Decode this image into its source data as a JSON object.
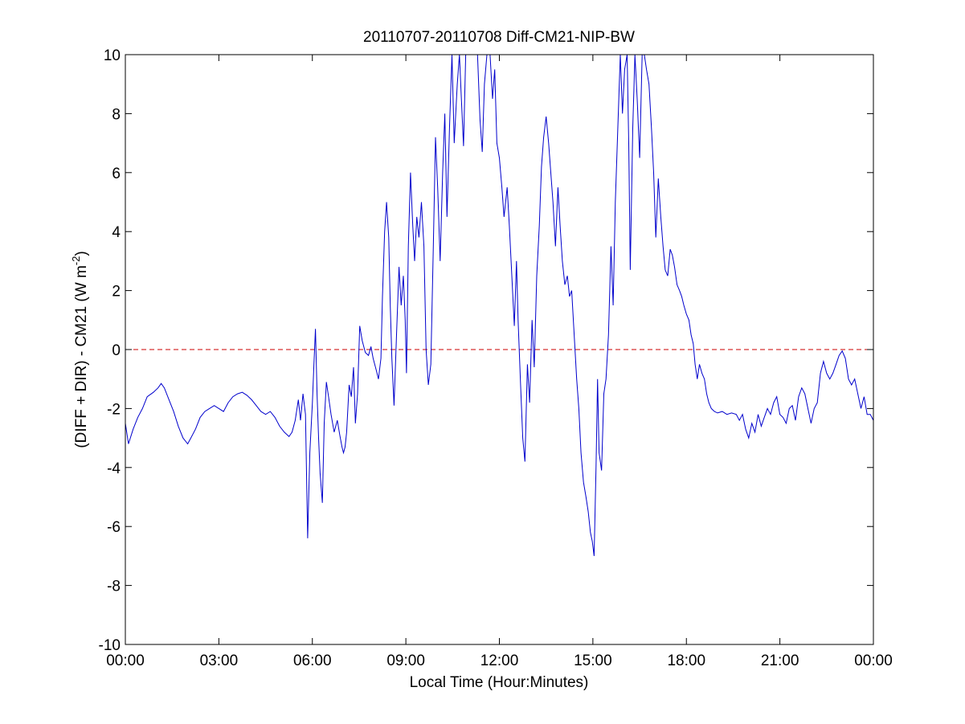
{
  "chart_data": {
    "type": "line",
    "title": "20110707-20110708 Diff-CM21-NIP-BW",
    "xlabel": "Local Time (Hour:Minutes)",
    "ylabel_main": "(DIFF + DIR) - CM21 (W m",
    "ylabel_sup": "-2",
    "ylabel_close": ")",
    "xlim": [
      0,
      24
    ],
    "ylim": [
      -10,
      10
    ],
    "x_ticks": [
      0,
      3,
      6,
      9,
      12,
      15,
      18,
      21,
      24
    ],
    "x_tick_labels": [
      "00:00",
      "03:00",
      "06:00",
      "09:00",
      "12:00",
      "15:00",
      "18:00",
      "21:00",
      "00:00"
    ],
    "y_ticks": [
      -10,
      -8,
      -6,
      -4,
      -2,
      0,
      2,
      4,
      6,
      8,
      10
    ],
    "y_tick_labels": [
      "-10",
      "-8",
      "-6",
      "-4",
      "-2",
      "0",
      "2",
      "4",
      "6",
      "8",
      "10"
    ],
    "grid": false,
    "reference_line": {
      "y": 0,
      "color": "#cc0000",
      "style": "dashed"
    },
    "series": [
      {
        "color": "#0000cc",
        "points": [
          [
            0.0,
            -2.5
          ],
          [
            0.1,
            -3.2
          ],
          [
            0.25,
            -2.7
          ],
          [
            0.4,
            -2.3
          ],
          [
            0.55,
            -2.0
          ],
          [
            0.7,
            -1.6
          ],
          [
            0.9,
            -1.45
          ],
          [
            1.05,
            -1.3
          ],
          [
            1.15,
            -1.15
          ],
          [
            1.25,
            -1.3
          ],
          [
            1.4,
            -1.7
          ],
          [
            1.55,
            -2.1
          ],
          [
            1.7,
            -2.6
          ],
          [
            1.85,
            -3.0
          ],
          [
            2.0,
            -3.2
          ],
          [
            2.1,
            -3.0
          ],
          [
            2.25,
            -2.7
          ],
          [
            2.4,
            -2.3
          ],
          [
            2.55,
            -2.1
          ],
          [
            2.7,
            -2.0
          ],
          [
            2.85,
            -1.9
          ],
          [
            3.0,
            -2.0
          ],
          [
            3.15,
            -2.1
          ],
          [
            3.3,
            -1.8
          ],
          [
            3.45,
            -1.6
          ],
          [
            3.6,
            -1.5
          ],
          [
            3.75,
            -1.45
          ],
          [
            3.9,
            -1.55
          ],
          [
            4.05,
            -1.7
          ],
          [
            4.2,
            -1.9
          ],
          [
            4.35,
            -2.1
          ],
          [
            4.5,
            -2.2
          ],
          [
            4.65,
            -2.1
          ],
          [
            4.8,
            -2.3
          ],
          [
            4.95,
            -2.6
          ],
          [
            5.1,
            -2.8
          ],
          [
            5.25,
            -2.95
          ],
          [
            5.35,
            -2.8
          ],
          [
            5.45,
            -2.4
          ],
          [
            5.55,
            -1.7
          ],
          [
            5.62,
            -2.4
          ],
          [
            5.7,
            -1.5
          ],
          [
            5.78,
            -2.2
          ],
          [
            5.85,
            -6.4
          ],
          [
            5.92,
            -3.5
          ],
          [
            6.0,
            -1.8
          ],
          [
            6.05,
            -0.5
          ],
          [
            6.1,
            0.7
          ],
          [
            6.15,
            -1.5
          ],
          [
            6.2,
            -3.0
          ],
          [
            6.25,
            -4.2
          ],
          [
            6.32,
            -5.2
          ],
          [
            6.38,
            -2.5
          ],
          [
            6.45,
            -1.1
          ],
          [
            6.52,
            -1.6
          ],
          [
            6.6,
            -2.2
          ],
          [
            6.7,
            -2.8
          ],
          [
            6.8,
            -2.4
          ],
          [
            6.88,
            -2.9
          ],
          [
            6.95,
            -3.3
          ],
          [
            7.0,
            -3.5
          ],
          [
            7.05,
            -3.3
          ],
          [
            7.1,
            -2.8
          ],
          [
            7.18,
            -1.2
          ],
          [
            7.25,
            -1.6
          ],
          [
            7.32,
            -0.6
          ],
          [
            7.38,
            -2.5
          ],
          [
            7.45,
            -1.5
          ],
          [
            7.52,
            0.8
          ],
          [
            7.6,
            0.3
          ],
          [
            7.7,
            -0.1
          ],
          [
            7.8,
            -0.2
          ],
          [
            7.88,
            0.1
          ],
          [
            7.95,
            -0.3
          ],
          [
            8.05,
            -0.7
          ],
          [
            8.12,
            -1.0
          ],
          [
            8.2,
            -0.3
          ],
          [
            8.25,
            1.8
          ],
          [
            8.32,
            4.0
          ],
          [
            8.38,
            5.0
          ],
          [
            8.45,
            3.8
          ],
          [
            8.5,
            1.5
          ],
          [
            8.55,
            -0.3
          ],
          [
            8.62,
            -1.9
          ],
          [
            8.7,
            0.5
          ],
          [
            8.78,
            2.8
          ],
          [
            8.85,
            1.5
          ],
          [
            8.92,
            2.5
          ],
          [
            8.98,
            1.0
          ],
          [
            9.02,
            -0.8
          ],
          [
            9.08,
            3.5
          ],
          [
            9.15,
            6.0
          ],
          [
            9.22,
            4.2
          ],
          [
            9.28,
            3.0
          ],
          [
            9.35,
            4.5
          ],
          [
            9.42,
            3.8
          ],
          [
            9.5,
            5.0
          ],
          [
            9.58,
            3.5
          ],
          [
            9.65,
            0.0
          ],
          [
            9.72,
            -1.2
          ],
          [
            9.8,
            -0.5
          ],
          [
            9.88,
            3.5
          ],
          [
            9.95,
            7.2
          ],
          [
            10.02,
            5.5
          ],
          [
            10.1,
            3.0
          ],
          [
            10.18,
            6.0
          ],
          [
            10.25,
            8.0
          ],
          [
            10.32,
            4.5
          ],
          [
            10.4,
            7.5
          ],
          [
            10.48,
            10.0
          ],
          [
            10.55,
            7.0
          ],
          [
            10.65,
            9.0
          ],
          [
            10.72,
            10.0
          ],
          [
            10.78,
            8.5
          ],
          [
            10.85,
            6.9
          ],
          [
            10.92,
            10.0
          ],
          [
            11.0,
            10.0
          ],
          [
            11.3,
            10.0
          ],
          [
            11.38,
            7.8
          ],
          [
            11.45,
            6.7
          ],
          [
            11.52,
            9.0
          ],
          [
            11.6,
            10.0
          ],
          [
            11.7,
            10.0
          ],
          [
            11.78,
            8.5
          ],
          [
            11.85,
            9.5
          ],
          [
            11.92,
            7.0
          ],
          [
            12.0,
            6.5
          ],
          [
            12.08,
            5.5
          ],
          [
            12.15,
            4.5
          ],
          [
            12.25,
            5.5
          ],
          [
            12.32,
            4.2
          ],
          [
            12.4,
            2.5
          ],
          [
            12.48,
            0.8
          ],
          [
            12.55,
            3.0
          ],
          [
            12.6,
            1.0
          ],
          [
            12.68,
            -1.2
          ],
          [
            12.75,
            -3.0
          ],
          [
            12.82,
            -3.8
          ],
          [
            12.9,
            -0.5
          ],
          [
            12.97,
            -1.8
          ],
          [
            13.05,
            1.0
          ],
          [
            13.12,
            -0.6
          ],
          [
            13.2,
            2.5
          ],
          [
            13.28,
            4.2
          ],
          [
            13.35,
            6.2
          ],
          [
            13.42,
            7.2
          ],
          [
            13.5,
            7.9
          ],
          [
            13.58,
            7.0
          ],
          [
            13.65,
            6.0
          ],
          [
            13.72,
            5.0
          ],
          [
            13.8,
            3.5
          ],
          [
            13.88,
            5.5
          ],
          [
            13.95,
            4.2
          ],
          [
            14.02,
            3.0
          ],
          [
            14.1,
            2.2
          ],
          [
            14.18,
            2.5
          ],
          [
            14.25,
            1.8
          ],
          [
            14.32,
            2.0
          ],
          [
            14.4,
            0.5
          ],
          [
            14.48,
            -1.0
          ],
          [
            14.55,
            -2.0
          ],
          [
            14.62,
            -3.5
          ],
          [
            14.7,
            -4.5
          ],
          [
            14.78,
            -5.0
          ],
          [
            14.85,
            -5.5
          ],
          [
            14.92,
            -6.2
          ],
          [
            14.98,
            -6.5
          ],
          [
            15.04,
            -7.0
          ],
          [
            15.1,
            -4.0
          ],
          [
            15.15,
            -1.0
          ],
          [
            15.2,
            -3.5
          ],
          [
            15.28,
            -4.1
          ],
          [
            15.35,
            -1.5
          ],
          [
            15.42,
            -1.0
          ],
          [
            15.5,
            0.5
          ],
          [
            15.58,
            3.5
          ],
          [
            15.65,
            1.5
          ],
          [
            15.72,
            5.0
          ],
          [
            15.8,
            7.5
          ],
          [
            15.88,
            10.0
          ],
          [
            15.95,
            8.0
          ],
          [
            16.02,
            9.5
          ],
          [
            16.1,
            10.0
          ],
          [
            16.15,
            7.0
          ],
          [
            16.2,
            2.7
          ],
          [
            16.28,
            7.5
          ],
          [
            16.35,
            10.0
          ],
          [
            16.42,
            8.5
          ],
          [
            16.5,
            6.5
          ],
          [
            16.58,
            10.0
          ],
          [
            16.65,
            10.0
          ],
          [
            16.72,
            9.5
          ],
          [
            16.8,
            9.0
          ],
          [
            16.88,
            7.5
          ],
          [
            16.95,
            6.0
          ],
          [
            17.02,
            3.8
          ],
          [
            17.1,
            5.8
          ],
          [
            17.18,
            4.5
          ],
          [
            17.25,
            3.5
          ],
          [
            17.32,
            2.7
          ],
          [
            17.4,
            2.5
          ],
          [
            17.48,
            3.4
          ],
          [
            17.55,
            3.2
          ],
          [
            17.62,
            2.8
          ],
          [
            17.7,
            2.2
          ],
          [
            17.78,
            2.0
          ],
          [
            17.85,
            1.8
          ],
          [
            17.92,
            1.5
          ],
          [
            18.0,
            1.2
          ],
          [
            18.08,
            1.0
          ],
          [
            18.15,
            0.5
          ],
          [
            18.22,
            0.2
          ],
          [
            18.28,
            -0.5
          ],
          [
            18.35,
            -1.0
          ],
          [
            18.42,
            -0.5
          ],
          [
            18.5,
            -0.8
          ],
          [
            18.58,
            -1.0
          ],
          [
            18.65,
            -1.5
          ],
          [
            18.72,
            -1.8
          ],
          [
            18.8,
            -2.0
          ],
          [
            18.9,
            -2.1
          ],
          [
            19.0,
            -2.15
          ],
          [
            19.15,
            -2.1
          ],
          [
            19.3,
            -2.2
          ],
          [
            19.45,
            -2.15
          ],
          [
            19.6,
            -2.2
          ],
          [
            19.7,
            -2.4
          ],
          [
            19.8,
            -2.2
          ],
          [
            19.9,
            -2.7
          ],
          [
            20.0,
            -3.0
          ],
          [
            20.1,
            -2.5
          ],
          [
            20.2,
            -2.8
          ],
          [
            20.3,
            -2.2
          ],
          [
            20.4,
            -2.6
          ],
          [
            20.5,
            -2.3
          ],
          [
            20.6,
            -2.0
          ],
          [
            20.7,
            -2.2
          ],
          [
            20.8,
            -1.8
          ],
          [
            20.9,
            -1.6
          ],
          [
            21.0,
            -2.2
          ],
          [
            21.1,
            -2.3
          ],
          [
            21.2,
            -2.5
          ],
          [
            21.3,
            -2.0
          ],
          [
            21.4,
            -1.9
          ],
          [
            21.5,
            -2.4
          ],
          [
            21.6,
            -1.6
          ],
          [
            21.7,
            -1.3
          ],
          [
            21.8,
            -1.5
          ],
          [
            21.9,
            -2.0
          ],
          [
            22.0,
            -2.5
          ],
          [
            22.1,
            -2.0
          ],
          [
            22.2,
            -1.8
          ],
          [
            22.3,
            -0.8
          ],
          [
            22.4,
            -0.4
          ],
          [
            22.5,
            -0.8
          ],
          [
            22.6,
            -1.0
          ],
          [
            22.7,
            -0.8
          ],
          [
            22.8,
            -0.5
          ],
          [
            22.9,
            -0.2
          ],
          [
            23.0,
            -0.05
          ],
          [
            23.1,
            -0.3
          ],
          [
            23.2,
            -1.0
          ],
          [
            23.3,
            -1.2
          ],
          [
            23.4,
            -1.0
          ],
          [
            23.5,
            -1.5
          ],
          [
            23.6,
            -2.0
          ],
          [
            23.7,
            -1.6
          ],
          [
            23.8,
            -2.2
          ],
          [
            23.9,
            -2.2
          ],
          [
            24.0,
            -2.4
          ]
        ]
      }
    ]
  }
}
